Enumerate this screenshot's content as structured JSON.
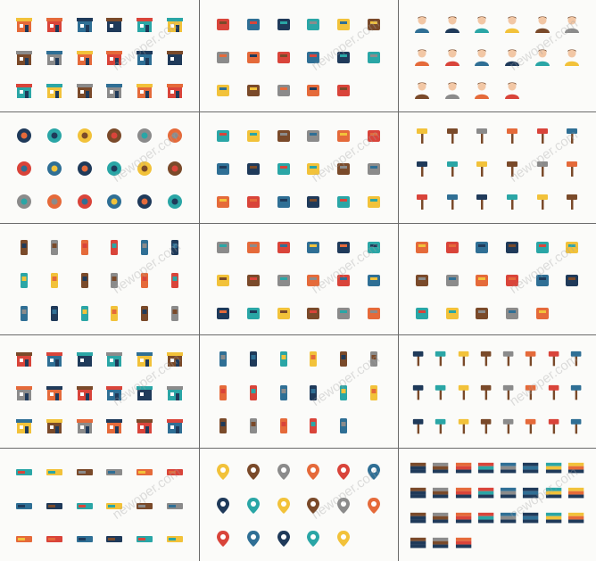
{
  "watermark": "newoper.com",
  "columns": 3,
  "rows": 5,
  "panels": [
    {
      "theme": "buildings",
      "icons": [
        "shop-icon",
        "store-icon",
        "bakery-icon",
        "shop-window-icon",
        "store-icon",
        "building-icon",
        "house-icon",
        "shop-icon",
        "factory-icon",
        "bank-icon",
        "office-icon",
        "door-icon",
        "door-icon",
        "garage-icon",
        "door-icon",
        "door-icon",
        "door-icon",
        "door-icon"
      ]
    },
    {
      "theme": "medical",
      "icons": [
        "pill-bottle-icon",
        "stretcher-icon",
        "hospital-bed-icon",
        "first-aid-kit-icon",
        "doctor-icon",
        "iv-drip-icon",
        "eye-icon",
        "blood-cell-icon",
        "heart-rate-icon",
        "syringe-icon",
        "magnifier-icon",
        "molecule-icon",
        "document-icon",
        "bandage-icon",
        "stethoscope-icon",
        "pill-blister-icon",
        "capsule-icon"
      ]
    },
    {
      "theme": "people",
      "icons": [
        "worker-icon",
        "woman-icon",
        "woman-icon",
        "man-icon",
        "woman-icon",
        "woman-icon",
        "woman-icon",
        "man-icon",
        "man-icon",
        "woman-icon",
        "man-icon",
        "woman-icon",
        "man-icon",
        "man-icon",
        "man-icon",
        "man-icon"
      ]
    },
    {
      "theme": "food",
      "icons": [
        "jar-icon",
        "jar-icon",
        "cake-icon",
        "bread-icon",
        "burger-icon",
        "cheese-icon",
        "roast-chicken-icon",
        "coffee-icon",
        "mixer-icon",
        "mug-icon",
        "cloche-icon",
        "clock-icon",
        "bell-icon",
        "donut-icon",
        "donut-icon",
        "eggs-icon",
        "frying-pan-icon",
        "drink-icon"
      ]
    },
    {
      "theme": "science",
      "icons": [
        "molecule-icon",
        "pen-icon",
        "monitor-icon",
        "chalkboard-icon",
        "jar-icon",
        "brain-icon",
        "book-icon",
        "radio-icon",
        "calculator-icon",
        "folder-icon",
        "glasses-icon",
        "globe-icon",
        "planet-icon",
        "notebook-icon",
        "book-icon",
        "atom-icon",
        "pencil-icon",
        "pen-icon"
      ]
    },
    {
      "theme": "construction",
      "icons": [
        "helmet-icon",
        "trowel-icon",
        "ruler-icon",
        "bricks-icon",
        "shovel-icon",
        "tape-icon",
        "paint-swatches-icon",
        "ladder-icon",
        "bucket-icon",
        "brush-icon",
        "brush-icon",
        "saw-icon",
        "paint-roller-icon",
        "pipe-icon",
        "barrier-icon",
        "barrier-icon",
        "toolbox-icon",
        "hammer-icon"
      ]
    },
    {
      "theme": "office",
      "icons": [
        "pencils-icon",
        "fire-extinguisher-icon",
        "pin-icon",
        "clipboard-icon",
        "document-icon",
        "photo-icon",
        "binder-clip-icon",
        "ruler-icon",
        "stapler-icon",
        "pin-icon",
        "sticky-notes-icon",
        "puzzle-icon",
        "paint-palette-icon",
        "pushpin-icon",
        "cursor-icon",
        "pin-icon",
        "idea-icon",
        "brush-icon"
      ]
    },
    {
      "theme": "commerce",
      "icons": [
        "24-hours-icon",
        "basket-icon",
        "document-icon",
        "credit-card-icon",
        "box-icon",
        "calendar-icon",
        "compass-icon",
        "cart-icon",
        "target-icon",
        "truck-icon",
        "laptop-icon",
        "key-icon",
        "suitcase-icon",
        "ship-icon",
        "phone-icon",
        "calculator-icon",
        "package-icon",
        "monitor-icon"
      ]
    },
    {
      "theme": "shopping",
      "icons": [
        "cash-register-icon",
        "receipt-icon",
        "card-terminal-icon",
        "phone-icon",
        "sale-tag-icon",
        "atm-icon",
        "wallet-icon",
        "awning-icon",
        "money-bag-icon",
        "cursor-icon",
        "chat-icon",
        "passport-icon",
        "coupon-icon",
        "coupon-icon",
        "globe-icon",
        "ring-icon",
        "shopping-bag-icon"
      ]
    },
    {
      "theme": "travel",
      "icons": [
        "pier-icon",
        "suitcase-icon",
        "gate-icon",
        "shop-icon",
        "sign-icon",
        "umbrella-icon",
        "big-ben-icon",
        "binoculars-icon",
        "no-entry-icon",
        "ship-icon",
        "train-icon",
        "ticket-icon",
        "eiffel-tower-icon",
        "gas-pump-icon",
        "arch-icon",
        "life-buoy-icon",
        "tram-icon",
        "signpost-icon"
      ]
    },
    {
      "theme": "ecology",
      "icons": [
        "truck-icon",
        "wheelbarrow-icon",
        "watering-can-icon",
        "battery-icon",
        "broom-icon",
        "lamp-icon",
        "battery-icon",
        "oil-pump-icon",
        "trash-can-icon",
        "sign-icon",
        "dustpan-icon",
        "bucket-icon",
        "log-pile-icon",
        "ship-icon",
        "gas-mask-icon",
        "radiation-barrel-icon",
        "factory-icon"
      ]
    },
    {
      "theme": "tools",
      "icons": [
        "bottle-icon",
        "fan-icon",
        "glove-icon",
        "toolbox-icon",
        "tool-box-icon",
        "drill-icon",
        "funnel-icon",
        "welding-icon",
        "fuel-pump-icon",
        "saw-icon",
        "wrench-icon",
        "jerrycan-icon",
        "goggles-icon",
        "bulb-icon",
        "jacket-icon",
        "mask-icon",
        "helmet-icon",
        "screwdriver-icon",
        "hat-icon",
        "manual-icon",
        "car-icon",
        "pliers-icon",
        "tools-icon",
        "document-icon"
      ]
    },
    {
      "theme": "garden",
      "icons": [
        "plank-icon",
        "seedlings-icon",
        "seedlings-icon",
        "seedlings-icon",
        "sprouts-icon",
        "fence-icon",
        "flowers-icon",
        "birdhouse-icon",
        "basket-icon",
        "gloves-icon",
        "windmill-icon",
        "rake-icon",
        "broom-icon",
        "ladder-icon",
        "bucket-icon",
        "trowel-icon",
        "hose-icon",
        "fork-icon"
      ]
    },
    {
      "theme": "map-pins",
      "icons": [
        "pin-icon",
        "pin-icon",
        "pin-icon",
        "pin-icon",
        "pin-icon",
        "sign-icon",
        "pin-icon",
        "pin-icon",
        "pin-icon",
        "pin-icon",
        "pin-icon",
        "sign-icon",
        "sign-icon",
        "flag-icon",
        "pin-icon",
        "arrow-pin-icon",
        "pin-icon"
      ]
    },
    {
      "theme": "flags",
      "icons": [
        "flag-icon",
        "flag-icon",
        "flag-icon",
        "flag-icon",
        "flag-icon",
        "flag-icon",
        "flag-icon",
        "flag-icon",
        "flag-icon",
        "flag-icon",
        "flag-icon",
        "flag-icon",
        "flag-icon",
        "flag-icon",
        "flag-icon",
        "flag-icon",
        "flag-icon",
        "flag-icon",
        "flag-icon",
        "flag-icon",
        "flag-icon",
        "flag-icon",
        "flag-icon",
        "flag-icon",
        "flag-icon",
        "flag-icon",
        "flag-icon"
      ]
    }
  ],
  "palette": {
    "background": "#fbfbf9",
    "divider": "#6b6b6b",
    "orange": "#e56a3a",
    "red": "#d9443a",
    "blue": "#2f6f95",
    "navy": "#1f3a5a",
    "teal": "#2aa6a6",
    "yellow": "#f2c23a",
    "brown": "#7a4a2a",
    "grey": "#8b8b8b",
    "skin": "#f2c7a5"
  }
}
